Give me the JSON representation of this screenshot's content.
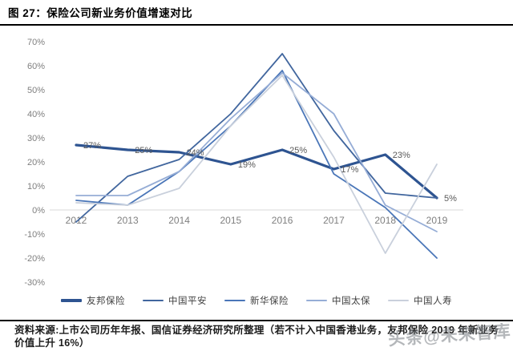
{
  "header": {
    "title": "图 27：保险公司新业务价值增速对比"
  },
  "chart_data": {
    "type": "line",
    "title": "保险公司新业务价值增速对比",
    "categories": [
      "2012",
      "2013",
      "2014",
      "2015",
      "2016",
      "2017",
      "2018",
      "2019"
    ],
    "series": [
      {
        "name": "友邦保险",
        "color": "#2e5491",
        "line_width": 3.2,
        "values": [
          27,
          25,
          24,
          19,
          25,
          17,
          23,
          5
        ],
        "data_labels": [
          "27%",
          "25%",
          "24%",
          "19%",
          "25%",
          "17%",
          "23%",
          "5%"
        ]
      },
      {
        "name": "中国平安",
        "color": "#41669e",
        "line_width": 1.8,
        "values": [
          -5,
          14,
          21,
          40,
          65,
          33,
          7,
          5
        ]
      },
      {
        "name": "新华保险",
        "color": "#4a76b8",
        "line_width": 1.8,
        "values": [
          4,
          2,
          16,
          35,
          58,
          15,
          1,
          -20
        ]
      },
      {
        "name": "中国太保",
        "color": "#96add6",
        "line_width": 1.8,
        "values": [
          6,
          6,
          16,
          38,
          57,
          40,
          2,
          -9
        ]
      },
      {
        "name": "中国人寿",
        "color": "#c9d0dc",
        "line_width": 1.8,
        "values": [
          3,
          2,
          9,
          35,
          56,
          22,
          -18,
          19
        ]
      }
    ],
    "ylim": [
      -30,
      70
    ],
    "ytick_step": 10,
    "ytick_labels": [
      "70%",
      "60%",
      "50%",
      "40%",
      "30%",
      "20%",
      "10%",
      "0%",
      "-10%",
      "-20%",
      "-30%"
    ],
    "xlabel": "",
    "ylabel": "",
    "grid": "zero-baseline-only",
    "legend_position": "bottom",
    "colors": {
      "axis_text": "#7f7f7f",
      "data_label_text": "#595959",
      "baseline": "#d9d9d9"
    }
  },
  "footer": {
    "source_line1": "资料来源:上市公司历年年报、国信证券经济研究所整理（若不计入中国香港业务，友邦保险 2019 年新业务",
    "source_line2": "价值上升 16%）"
  },
  "watermark": {
    "text": "头条@未来智库"
  }
}
